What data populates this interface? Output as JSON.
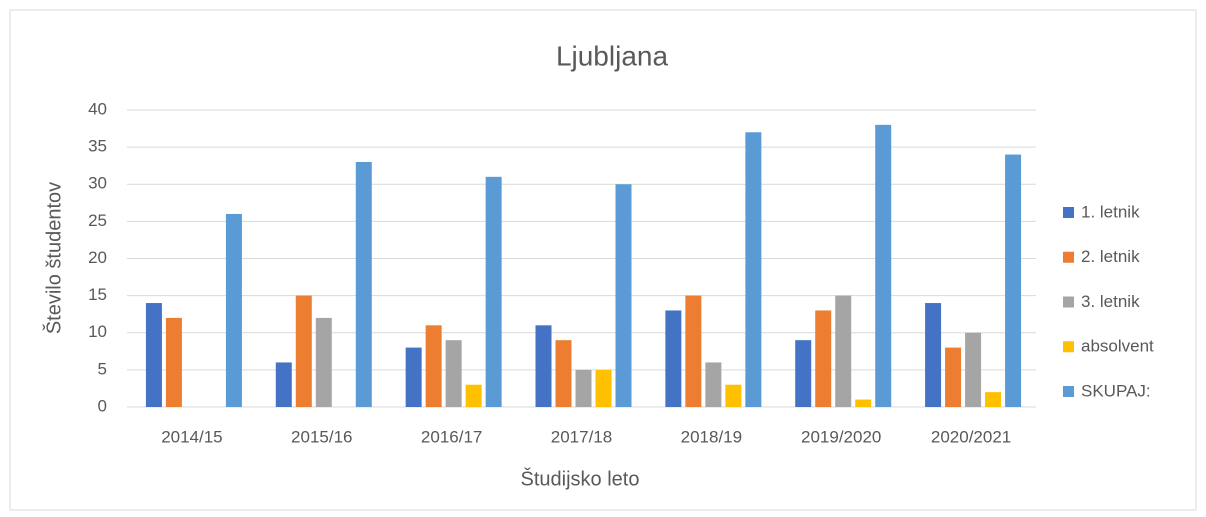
{
  "chart_data": {
    "type": "bar",
    "title": "Ljubljana",
    "x_label": "Študijsko leto",
    "y_label": "Število študentov",
    "categories": [
      "2014/15",
      "2015/16",
      "2016/17",
      "2017/18",
      "2018/19",
      "2019/2020",
      "2020/2021"
    ],
    "series": [
      {
        "name": "1. letnik",
        "color": "#4472c4",
        "values": [
          14,
          6,
          8,
          11,
          13,
          9,
          14
        ]
      },
      {
        "name": "2. letnik",
        "color": "#ed7d31",
        "values": [
          12,
          15,
          11,
          9,
          15,
          13,
          8
        ]
      },
      {
        "name": "3. letnik",
        "color": "#a5a5a5",
        "values": [
          0,
          12,
          9,
          5,
          6,
          15,
          10
        ]
      },
      {
        "name": "absolvent",
        "color": "#ffc000",
        "values": [
          0,
          0,
          3,
          5,
          3,
          1,
          2
        ]
      },
      {
        "name": "SKUPAJ:",
        "color": "#5b9bd5",
        "values": [
          26,
          33,
          31,
          30,
          37,
          38,
          34
        ]
      }
    ],
    "ylim": [
      0,
      40
    ],
    "yticks": [
      0,
      5,
      10,
      15,
      20,
      25,
      30,
      35,
      40
    ],
    "grid": true,
    "legend": "right"
  }
}
